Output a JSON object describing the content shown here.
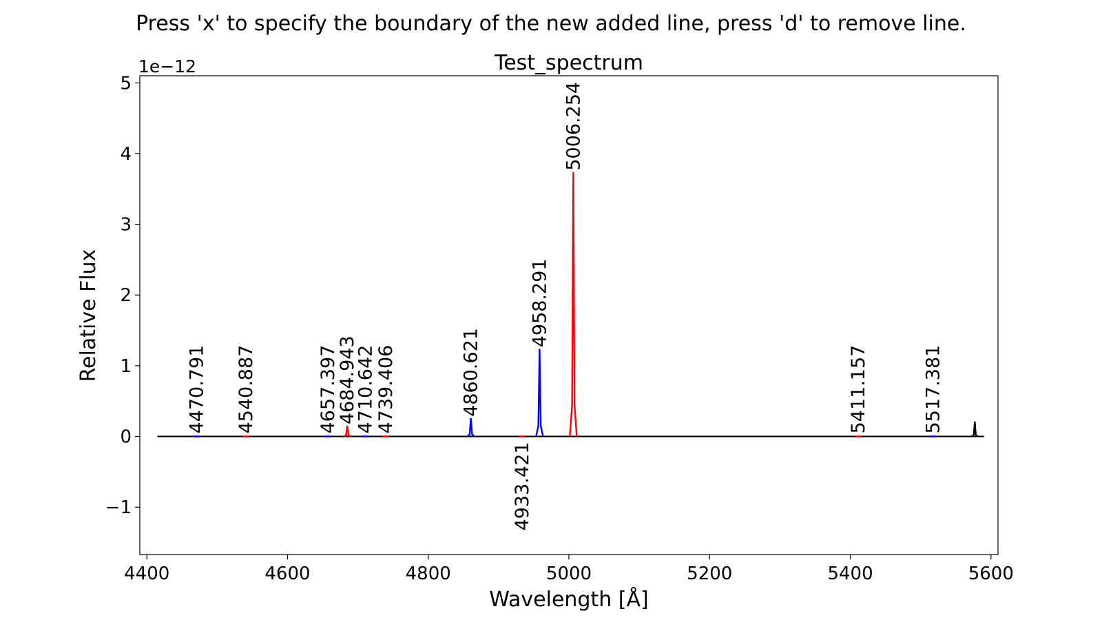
{
  "window": {
    "instruction": "Press 'x' to specify the boundary of the new added line, press 'd' to remove line."
  },
  "chart_data": {
    "type": "line",
    "title": "Test_spectrum",
    "xlabel": "Wavelength [Å]",
    "ylabel": "Relative Flux",
    "y_offset_label": "1e−12",
    "y_scale": 1e-12,
    "xlim": [
      4390,
      5610
    ],
    "ylim": [
      -1.67,
      5.1
    ],
    "xticks": [
      4400,
      4600,
      4800,
      5000,
      5200,
      5400,
      5600
    ],
    "xtick_labels": [
      "4400",
      "4600",
      "4800",
      "5000",
      "5200",
      "5400",
      "5600"
    ],
    "yticks": [
      -1,
      0,
      1,
      2,
      3,
      4,
      5
    ],
    "ytick_labels": [
      "−1",
      "0",
      "1",
      "2",
      "3",
      "4",
      "5"
    ],
    "grid": false,
    "continuum": {
      "x_start": 4415,
      "x_end": 5590,
      "y": 0,
      "color": "#000000"
    },
    "lines": [
      {
        "label": "4470.791",
        "x": 4470.791,
        "peak": 0.02,
        "color": "#0000ff",
        "label_pos": "above"
      },
      {
        "label": "4540.887",
        "x": 4540.887,
        "peak": 0.02,
        "color": "#ff0000",
        "label_pos": "above"
      },
      {
        "label": "4657.397",
        "x": 4657.397,
        "peak": 0.02,
        "color": "#0000ff",
        "label_pos": "above"
      },
      {
        "label": "4684.943",
        "x": 4684.943,
        "peak": 0.15,
        "color": "#ff0000",
        "label_pos": "above"
      },
      {
        "label": "4710.642",
        "x": 4710.642,
        "peak": 0.02,
        "color": "#0000ff",
        "label_pos": "above"
      },
      {
        "label": "4739.406",
        "x": 4739.406,
        "peak": 0.02,
        "color": "#ff0000",
        "label_pos": "above"
      },
      {
        "label": "4860.621",
        "x": 4860.621,
        "peak": 0.26,
        "color": "#0000ff",
        "label_pos": "above"
      },
      {
        "label": "4933.421",
        "x": 4933.421,
        "peak": 0.0,
        "color": "#ff0000",
        "label_pos": "below"
      },
      {
        "label": "4958.291",
        "x": 4958.291,
        "peak": 1.24,
        "color": "#0000ff",
        "label_pos": "above"
      },
      {
        "label": "5006.254",
        "x": 5006.254,
        "peak": 3.74,
        "color": "#ff0000",
        "label_pos": "above"
      },
      {
        "label": "5411.157",
        "x": 5411.157,
        "peak": 0.02,
        "color": "#ff0000",
        "label_pos": "above"
      },
      {
        "label": "5517.381",
        "x": 5517.381,
        "peak": 0.02,
        "color": "#0000ff",
        "label_pos": "above"
      }
    ],
    "extra_peaks": [
      {
        "x": 5577,
        "peak": 0.21,
        "color": "#000000"
      }
    ]
  }
}
